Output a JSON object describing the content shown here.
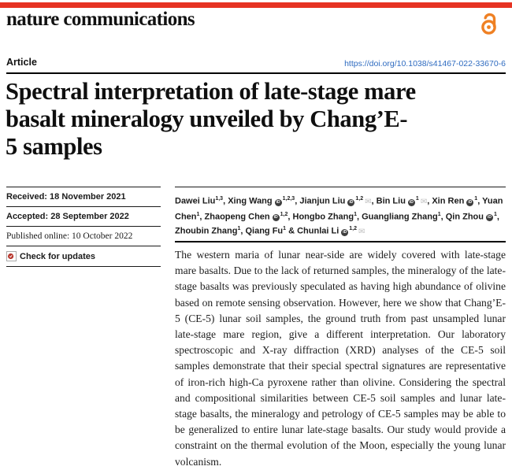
{
  "colors": {
    "brand_red": "#e63323",
    "link_blue": "#2e6bc0",
    "oa_orange": "#ef8023",
    "orcid_dark": "#3d3d3d",
    "envelope_gray": "#bdbdbd",
    "crossmark_red": "#b8392f"
  },
  "masthead": {
    "journal": "nature communications",
    "open_access_icon": "open-access-icon"
  },
  "article_meta": {
    "type_label": "Article",
    "doi": "https://doi.org/10.1038/s41467-022-33670-6"
  },
  "title_lines": [
    "Spectral interpretation of late-stage mare",
    "basalt mineralogy unveiled by Chang’E-",
    "5 samples"
  ],
  "sidebar": {
    "received": "Received: 18 November 2021",
    "accepted": "Accepted: 28 September 2022",
    "published": "Published online: 10 October 2022",
    "check_updates": "Check for updates",
    "crossmark_icon": "crossmark-icon"
  },
  "authors": [
    {
      "name": "Dawei Liu",
      "sup": "1,3",
      "orcid": false,
      "email": false
    },
    {
      "name": "Xing Wang",
      "sup": "1,2,3",
      "orcid": true,
      "email": false
    },
    {
      "name": "Jianjun Liu",
      "sup": "1,2",
      "orcid": true,
      "email": true
    },
    {
      "name": "Bin Liu",
      "sup": "1",
      "orcid": true,
      "email": true
    },
    {
      "name": "Xin Ren",
      "sup": "1",
      "orcid": true,
      "email": false
    },
    {
      "name": "Yuan Chen",
      "sup": "1",
      "orcid": false,
      "email": false
    },
    {
      "name": "Zhaopeng Chen",
      "sup": "1,2",
      "orcid": true,
      "email": false
    },
    {
      "name": "Hongbo Zhang",
      "sup": "1",
      "orcid": false,
      "email": false
    },
    {
      "name": "Guangliang Zhang",
      "sup": "1",
      "orcid": false,
      "email": false
    },
    {
      "name": "Qin Zhou",
      "sup": "1",
      "orcid": true,
      "email": false
    },
    {
      "name": "Zhoubin Zhang",
      "sup": "1",
      "orcid": false,
      "email": false
    },
    {
      "name": "Qiang Fu",
      "sup": "1",
      "orcid": false,
      "email": false
    },
    {
      "name": "Chunlai Li",
      "sup": "1,2",
      "orcid": true,
      "email": true
    }
  ],
  "author_icons": {
    "orcid_glyph": "iD",
    "email_glyph": "✉"
  },
  "abstract": "The western maria of lunar near-side are widely covered with late-stage mare basalts. Due to the lack of returned samples, the mineralogy of the late-stage basalts was previously speculated as having high abundance of olivine based on remote sensing observation. However, here we show that Chang’E-5 (CE-5) lunar soil samples, the ground truth from past unsampled lunar late-stage mare region, give a different interpretation. Our laboratory spectroscopic and X-ray diffraction (XRD) analyses of the CE-5 soil samples demonstrate that their special spectral signatures are representative of iron-rich high-Ca pyroxene rather than olivine. Considering the spectral and compositional similarities between CE-5 soil samples and lunar late-stage basalts, the mineralogy and petrology of CE-5 samples may be able to be generalized to entire lunar late-stage basalts. Our study would provide a constraint on the thermal evolution of the Moon, especially the young lunar volcanism."
}
